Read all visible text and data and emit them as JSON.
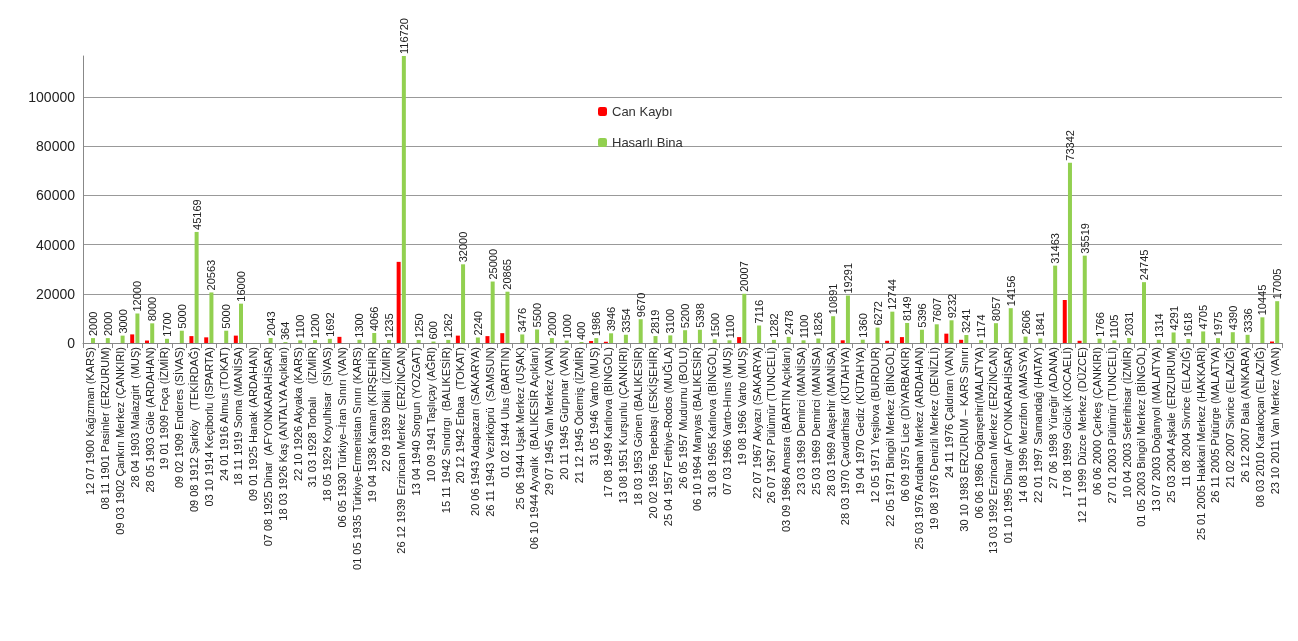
{
  "chart_data": {
    "type": "bar",
    "categories": [
      "12 07 1900 Kağızman (KARS)",
      "08 11 1901 Pasinler (ERZURUM)",
      "09 03 1902 Çankırı Merkez (ÇANKIRI)",
      "28 04 1903 Malazgirt  (MUŞ)",
      "28 05 1903 Göle (ARDAHAN)",
      "19 01 1909 Foça (İZMİR)",
      "09 02 1909 Enderes (SİVAS)",
      "09 08 1912 Şarköy   (TEKİRDAĞ)",
      "03 10 1914 Keçiborlu (ISPARTA)",
      "24 01 1916 Almus (TOKAT)",
      "18 11 1919 Soma (MANİSA)",
      "09 01 1925 Hanak (ARDAHAN)",
      "07 08 1925 Dinar  (AFYONKARAHİSAR)",
      "18 03 1926 Kaş (ANTALYA Açıkları)",
      "22 10 1926 Akyaka (KARS)",
      "31 03 1928 Torbalı    (İZMİR)",
      "18 05 1929 Koyulhisar  (SİVAS)",
      "06 05 1930 Türkiye–İran Sınırı (VAN)",
      "01 05 1935 Türkiye-Ermenistan Sınırı (KARS)",
      "19 04 1938 Kaman (KIRŞEHİR)",
      "22 09 1939 Dikili  (İZMİR)",
      "26 12 1939 Erzincan Merkez (ERZİNCAN)",
      "13 04 1940 Sorgun (YOZGAT)",
      "10 09 1941 Taşlıçay (AĞRI)",
      "15 11 1942 Sındırgı  (BALIKESİR)",
      "20 12 1942 Erbaa  (TOKAT)",
      "20 06 1943 Adapazarı (SAKARYA)",
      "26 11 1943 Vezirköprü  (SAMSUN)",
      "01 02 1944 Ulus (BARTIN)",
      "25 06 1944 Uşak Merkez (UŞAK)",
      "06 10 1944 Ayvalık  (BALIKESİR Açıkları)",
      "29 07 1945 Van Merkez (VAN)",
      "20 11 1945 Gürpınar (VAN)",
      "21 12 1945 Ödemiş (İZMİR)",
      "31 05 1946 Varto (MUŞ)",
      "17 08 1949 Karlıova (BİNGÖL)",
      "13 08 1951 Kurşunlu (ÇANKIRI)",
      "18 03 1953 Gönen (BALIKESİR)",
      "20 02 1956 Tepebaşı (ESKİŞEHİR)",
      "25 04 1957 Fethiye-Rodos (MUĞLA)",
      "26 05 1957 Mudurnu (BOLU)",
      "06 10 1964 Manyas (BALIKESİR)",
      "31 08 1965 Karlıova (BİNGÖL)",
      "07 03 1966 Varto-Hınıs (MUŞ)",
      "19 08 1966 Varto (MUŞ)",
      "22 07 1967 Akyazı (SAKARYA)",
      "26 07 1967 Pülümür (TUNCELİ)",
      "03 09 1968 Amasra (BARTIN Açıkları)",
      "23 03 1969 Demirci (MANİSA)",
      "25 03 1969 Demirci (MANİSA)",
      "28 03 1969 Alaşehir (MANİSA)",
      "28 03 1970 Çavdarhisar (KÜTAHYA)",
      "19 04 1970 Gediz (KÜTAHYA)",
      "12 05 1971 Yeşilova (BURDUR)",
      "22 05 1971 Bingöl Merkez (BİNGÖL)",
      "06 09 1975 Lice (DİYARBAKIR)",
      "25 03 1976 Ardahan Merkez (ARDAHAN)",
      "19 08 1976 Denizli Merkez (DENİZLİ)",
      "24 11 1976 Çaldıran (VAN)",
      "30 10 1983 ERZURUM – KARS Sınırı",
      "06 06 1986 Doğanşehir(MALATYA)",
      "13 03 1992 Erzincan Merkez (ERZİNCAN)",
      "01 10 1995 Dinar (AFYONKARAHİSAR)",
      "14 08 1996 Merzifon (AMASYA)",
      "22 01 1997 Samandağ (HATAY)",
      "27 06 1998 Yüreğir (ADANA)",
      "17 08 1999 Gölcük (KOCAELİ)",
      "12 11 1999 Düzce Merkez (DÜZCE)",
      "06 06 2000 Çerkeş (ÇANKIRI)",
      "27 01 2003 Pülümür (TUNCELİ)",
      "10 04 2003 Seferihisar (İZMİR)",
      "01 05 2003 Bingöl Merkez (BİNGÖL)",
      "13 07 2003 Doğanyol (MALATYA)",
      "25 03 2004 Aşkale (ERZURUM)",
      "11 08 2004 Sivrice (ELAZIĞ)",
      "25 01 2005 Hakkari Merkez (HAKKARİ)",
      "26 11 2005 Pütürge (MALATYA)",
      "21 02 2007 Sivrice (ELAZIĞ)",
      "26 12 2007 Bala (ANKARA)",
      "08 03 2010 Karakoçan (ELAZIĞ)",
      "23 10 2011 Van Merkez (VAN)"
    ],
    "series": [
      {
        "name": "Can Kaybı",
        "color": "#ff0000",
        "values": [
          null,
          null,
          null,
          3500,
          1000,
          null,
          null,
          2800,
          2300,
          null,
          3000,
          null,
          null,
          null,
          null,
          null,
          null,
          2500,
          null,
          null,
          null,
          33000,
          null,
          null,
          null,
          3000,
          null,
          2800,
          4000,
          null,
          null,
          null,
          null,
          null,
          800,
          500,
          null,
          null,
          null,
          null,
          null,
          null,
          null,
          null,
          2400,
          null,
          null,
          null,
          null,
          null,
          null,
          1100,
          null,
          null,
          900,
          2400,
          null,
          null,
          3800,
          1300,
          null,
          null,
          null,
          null,
          null,
          null,
          17500,
          900,
          null,
          null,
          null,
          null,
          null,
          null,
          null,
          null,
          null,
          null,
          null,
          null,
          600
        ]
      },
      {
        "name": "Hasarlı Bina",
        "color": "#92d050",
        "values": [
          2000,
          2000,
          3000,
          12000,
          8000,
          1700,
          5000,
          45169,
          20563,
          5000,
          16000,
          null,
          2043,
          364,
          1100,
          1200,
          1692,
          null,
          1300,
          4066,
          1235,
          116720,
          1250,
          600,
          1262,
          32000,
          2240,
          25000,
          20865,
          3476,
          5500,
          2000,
          1000,
          400,
          1986,
          3946,
          3354,
          9670,
          2819,
          3100,
          5200,
          5398,
          1500,
          1100,
          20007,
          7116,
          1282,
          2478,
          1100,
          1826,
          10891,
          19291,
          1360,
          6272,
          12744,
          8149,
          5396,
          7607,
          9232,
          3241,
          1174,
          8057,
          14156,
          2606,
          1841,
          31463,
          73342,
          35519,
          1766,
          1105,
          2031,
          24745,
          1314,
          4291,
          1618,
          4705,
          1975,
          4390,
          3336,
          10445,
          17005
        ],
        "value_labels": [
          "2000",
          "2000",
          "3000",
          "12000",
          "8000",
          "1700",
          "5000",
          "45169",
          "20563",
          "5000",
          "16000",
          null,
          "2043",
          "364",
          "1100",
          "1200",
          "1692",
          null,
          "1300",
          "4066",
          "1235",
          "116720",
          "1250",
          "600",
          "1262",
          "32000",
          "2240",
          "25000",
          "20865",
          "3476",
          "5500",
          "2000",
          "1000",
          "400",
          "1986",
          "3946",
          "3354",
          "9670",
          "2819",
          "3100",
          "5200",
          "5398",
          "1500",
          "1100",
          "20007",
          "7116",
          "1282",
          "2478",
          "1100",
          "1826",
          "10891",
          "19291",
          "1360",
          "6272",
          "12744",
          "8149",
          "5396",
          "7607",
          "9232",
          "3241",
          "1174",
          "8057",
          "14156",
          "2606",
          "1841",
          "31463",
          "73342",
          "35519",
          "1766",
          "1105",
          "2031",
          "24745",
          "1314",
          "4291",
          "1618",
          "4705",
          "1975",
          "4390",
          "3336",
          "10445",
          "17005"
        ]
      }
    ],
    "ylim": [
      0,
      116720
    ],
    "yticks": [
      0,
      20000,
      40000,
      60000,
      80000,
      100000
    ],
    "grid": "y",
    "legend": "top"
  }
}
